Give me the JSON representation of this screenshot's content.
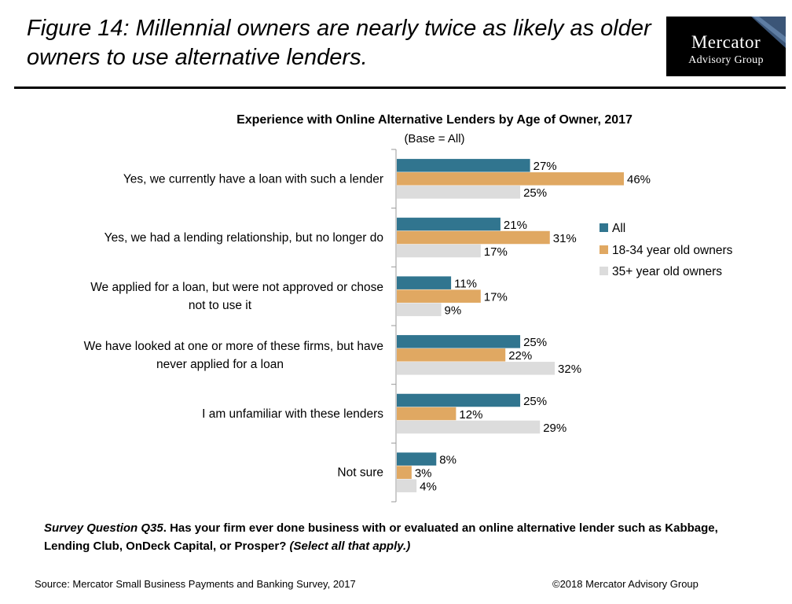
{
  "figure": {
    "title": "Figure 14: Millennial owners are nearly twice as likely as older owners to use alternative lenders."
  },
  "logo": {
    "line1": "Mercator",
    "line2": "Advisory Group"
  },
  "chart_data": {
    "type": "bar",
    "orientation": "horizontal",
    "title": "Experience with Online Alternative Lenders by Age of Owner, 2017",
    "subtitle": "(Base = All)",
    "categories": [
      [
        "Yes, we currently have a loan with such a lender"
      ],
      [
        "Yes, we had a lending relationship, but no longer do"
      ],
      [
        "We applied for a loan, but were not approved or chose",
        "not to use it"
      ],
      [
        "We have looked at one or more of these firms, but have",
        "never applied for a loan"
      ],
      [
        "I am unfamiliar with these lenders"
      ],
      [
        "Not sure"
      ]
    ],
    "series": [
      {
        "name": "All",
        "color": "#31758f",
        "values": [
          27,
          21,
          11,
          25,
          25,
          8
        ],
        "labels": [
          "27%",
          "21%",
          "11%",
          "25%",
          "25%",
          "8%"
        ]
      },
      {
        "name": "18-34 year old owners",
        "color": "#e0a862",
        "values": [
          46,
          31,
          17,
          22,
          12,
          3
        ],
        "labels": [
          "46%",
          "31%",
          "17%",
          "22%",
          "12%",
          "3%"
        ]
      },
      {
        "name": "35+ year old owners",
        "color": "#dcdcdc",
        "values": [
          25,
          17,
          9,
          32,
          29,
          4
        ],
        "labels": [
          "25%",
          "17%",
          "9%",
          "32%",
          "29%",
          "4%"
        ]
      }
    ],
    "xlim": [
      0,
      50
    ],
    "legend_position": "right",
    "grid": false
  },
  "question": {
    "label": "Survey Question Q35",
    "text": ". Has your firm ever done business with or evaluated an online alternative lender such as Kabbage, Lending Club, OnDeck Capital, or Prosper? ",
    "note": "(Select all that apply.)"
  },
  "footer": {
    "source": "Source: Mercator Small Business Payments and Banking Survey, 2017",
    "copyright": "©2018 Mercator Advisory Group"
  }
}
